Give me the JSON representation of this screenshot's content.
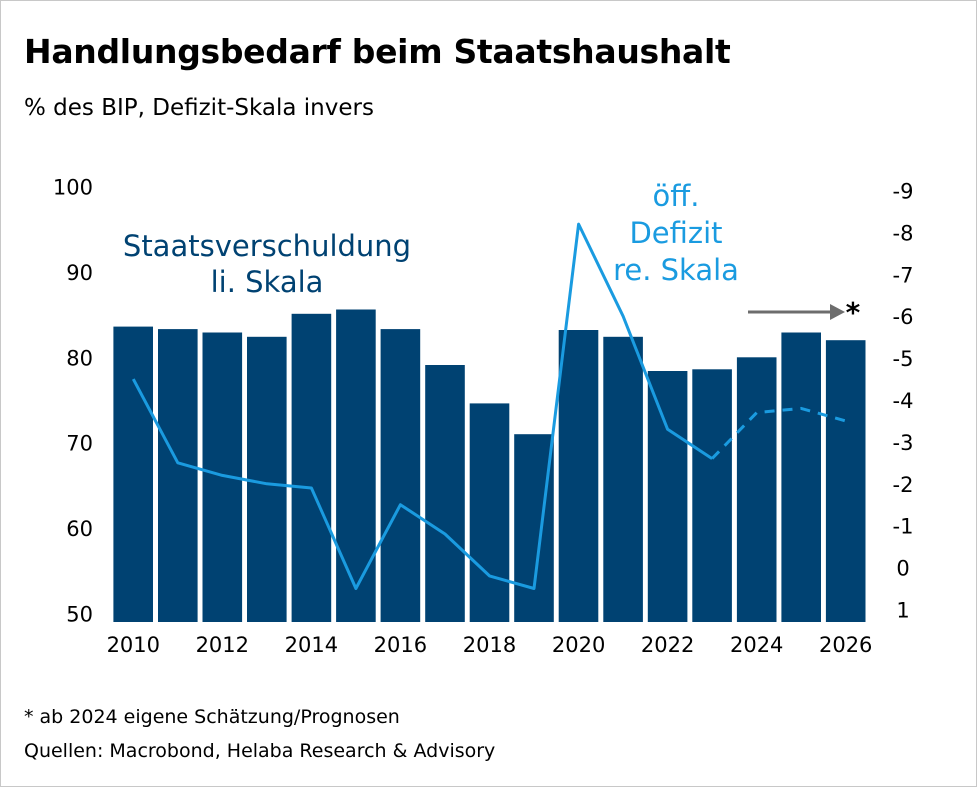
{
  "title": "Handlungsbedarf beim Staatshaushalt",
  "subtitle": "% des BIP, Defizit-Skala invers",
  "footnote": "* ab 2024 eigene Schätzung/Prognosen",
  "sources": "Quellen: Macrobond, Helaba Research & Advisory",
  "colors": {
    "bars": "#004272",
    "line": "#1a9be0",
    "arrow": "#6d6d6d"
  },
  "chart_data": {
    "type": "bar",
    "categories": [
      "2010",
      "2011",
      "2012",
      "2013",
      "2014",
      "2015",
      "2016",
      "2017",
      "2018",
      "2019",
      "2020",
      "2021",
      "2022",
      "2023",
      "2024",
      "2025",
      "2026"
    ],
    "x_tick_labels": [
      "2010",
      "2012",
      "2014",
      "2016",
      "2018",
      "2020",
      "2022",
      "2024",
      "2026"
    ],
    "series": [
      {
        "name": "Staatsverschuldung",
        "axis": "left",
        "type": "bar",
        "values": [
          83.6,
          83.3,
          82.9,
          82.4,
          85.1,
          85.6,
          83.3,
          79.1,
          74.6,
          71.0,
          83.2,
          82.4,
          78.4,
          78.6,
          80.0,
          82.9,
          82.0
        ]
      },
      {
        "name": "öff. Defizit",
        "axis": "right",
        "type": "line",
        "values": [
          4.5,
          2.5,
          2.2,
          2.0,
          1.9,
          -0.5,
          1.5,
          0.8,
          -0.2,
          -0.5,
          8.2,
          6.0,
          3.3,
          2.6,
          3.7,
          3.8,
          3.5
        ],
        "forecast_from": "2024"
      }
    ],
    "left_axis": {
      "ylim": [
        49,
        101
      ],
      "ticks": [
        "100",
        "90",
        "80",
        "70",
        "60",
        "50"
      ],
      "tick_values": [
        100,
        90,
        80,
        70,
        60,
        50
      ]
    },
    "right_axis": {
      "ylim": [
        -1.3,
        9.3
      ],
      "inverted_label": true,
      "ticks": [
        "-9",
        "-8",
        "-7",
        "-6",
        "-5",
        "-4",
        "-3",
        "-2",
        "-1",
        "0",
        "1"
      ],
      "tick_values": [
        9,
        8,
        7,
        6,
        5,
        4,
        3,
        2,
        1,
        0,
        -1
      ]
    },
    "annotations": {
      "debt_label_line1": "Staatsverschuldung",
      "debt_label_line2": "li. Skala",
      "deficit_label_line1": "öff.",
      "deficit_label_line2": "Defizit",
      "deficit_label_line3": "re. Skala",
      "forecast_marker": "*"
    }
  }
}
